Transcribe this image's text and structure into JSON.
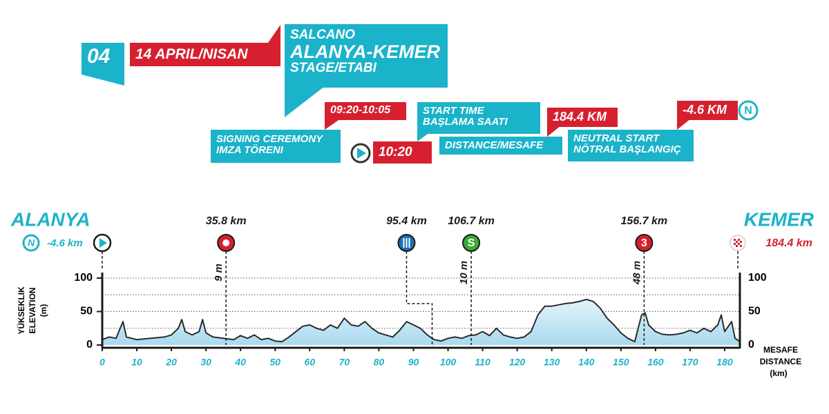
{
  "header": {
    "stage_number": "04",
    "date": "14 APRIL/NISAN",
    "sponsor": "SALCANO",
    "route": "ALANYA-KEMER",
    "stage_label": "STAGE/ETABI",
    "signing_time": "09:20-10:05",
    "signing_label_1": "SIGNING CEREMONY",
    "signing_label_2": "IMZA TÖRENI",
    "start_time": "10:20",
    "start_label_1": "START TIME",
    "start_label_2": "BAŞLAMA SAATI",
    "distance": "184.4 KM",
    "distance_label": "DISTANCE/MESAFE",
    "neutral": "-4.6 KM",
    "neutral_label_1": "NEUTRAL START",
    "neutral_label_2": "NÖTRAL BAŞLANGIÇ"
  },
  "chart_data": {
    "type": "area",
    "start_city": "ALANYA",
    "finish_city": "KEMER",
    "start_label": "-4.6 km",
    "finish_label": "184.4 km",
    "neutral_symbol": "N",
    "y_label_1": "YÜKSEKLIK",
    "y_label_2": "ELEVATION",
    "y_label_3": "(m)",
    "x_label_1": "MESAFE",
    "x_label_2": "DISTANCE",
    "x_label_3": "(km)",
    "color": "#2a2a2a",
    "fill": "#bfe3f3",
    "x": [
      0,
      2,
      4,
      6,
      7,
      10,
      14,
      18,
      20,
      22,
      23,
      24,
      26,
      28,
      29,
      30,
      32,
      35,
      38,
      40,
      42,
      44,
      46,
      48,
      50,
      52,
      54,
      56,
      58,
      60,
      62,
      64,
      66,
      68,
      70,
      72,
      74,
      76,
      78,
      80,
      82,
      84,
      86,
      88,
      90,
      92,
      94,
      96,
      98,
      100,
      102,
      104,
      106,
      108,
      110,
      112,
      114,
      116,
      118,
      120,
      122,
      124,
      126,
      128,
      130,
      132,
      134,
      136,
      138,
      140,
      142,
      144,
      146,
      148,
      150,
      152,
      154,
      156,
      157,
      158,
      160,
      162,
      164,
      166,
      168,
      170,
      172,
      174,
      176,
      178,
      179,
      180,
      182,
      183,
      184.4
    ],
    "values": [
      8,
      12,
      10,
      35,
      12,
      8,
      10,
      12,
      15,
      25,
      38,
      20,
      15,
      20,
      38,
      18,
      12,
      10,
      8,
      14,
      10,
      15,
      8,
      10,
      6,
      5,
      12,
      20,
      28,
      30,
      25,
      22,
      30,
      25,
      40,
      30,
      28,
      35,
      25,
      18,
      15,
      12,
      22,
      35,
      30,
      25,
      15,
      8,
      6,
      10,
      12,
      10,
      14,
      15,
      20,
      14,
      25,
      15,
      12,
      10,
      12,
      20,
      45,
      58,
      58,
      60,
      62,
      63,
      65,
      68,
      65,
      55,
      40,
      30,
      18,
      10,
      5,
      45,
      48,
      30,
      20,
      16,
      15,
      16,
      18,
      22,
      18,
      25,
      20,
      30,
      45,
      20,
      35,
      10,
      5
    ],
    "xlim": [
      0,
      184.4
    ],
    "xticks": [
      0,
      10,
      20,
      30,
      40,
      50,
      60,
      70,
      80,
      90,
      100,
      110,
      120,
      130,
      140,
      150,
      160,
      170,
      180
    ],
    "ylim": [
      0,
      100
    ],
    "yticks": [
      0,
      50,
      100
    ],
    "gridlines": [
      25,
      50,
      75,
      100
    ],
    "markers": [
      {
        "x": 35.8,
        "label": "35.8 km",
        "height_label": "9 m",
        "color": "#d7202f"
      },
      {
        "x": 95.4,
        "icon_x": 88,
        "label": "95.4 km",
        "color": "#1a6fb5"
      },
      {
        "x": 106.7,
        "label": "106.7 km",
        "height_label": "10 m",
        "symbol": "S",
        "color": "#3aaa35"
      },
      {
        "x": 156.7,
        "label": "156.7 km",
        "height_label": "48 m",
        "symbol": "3",
        "color": "#d7202f"
      }
    ]
  }
}
